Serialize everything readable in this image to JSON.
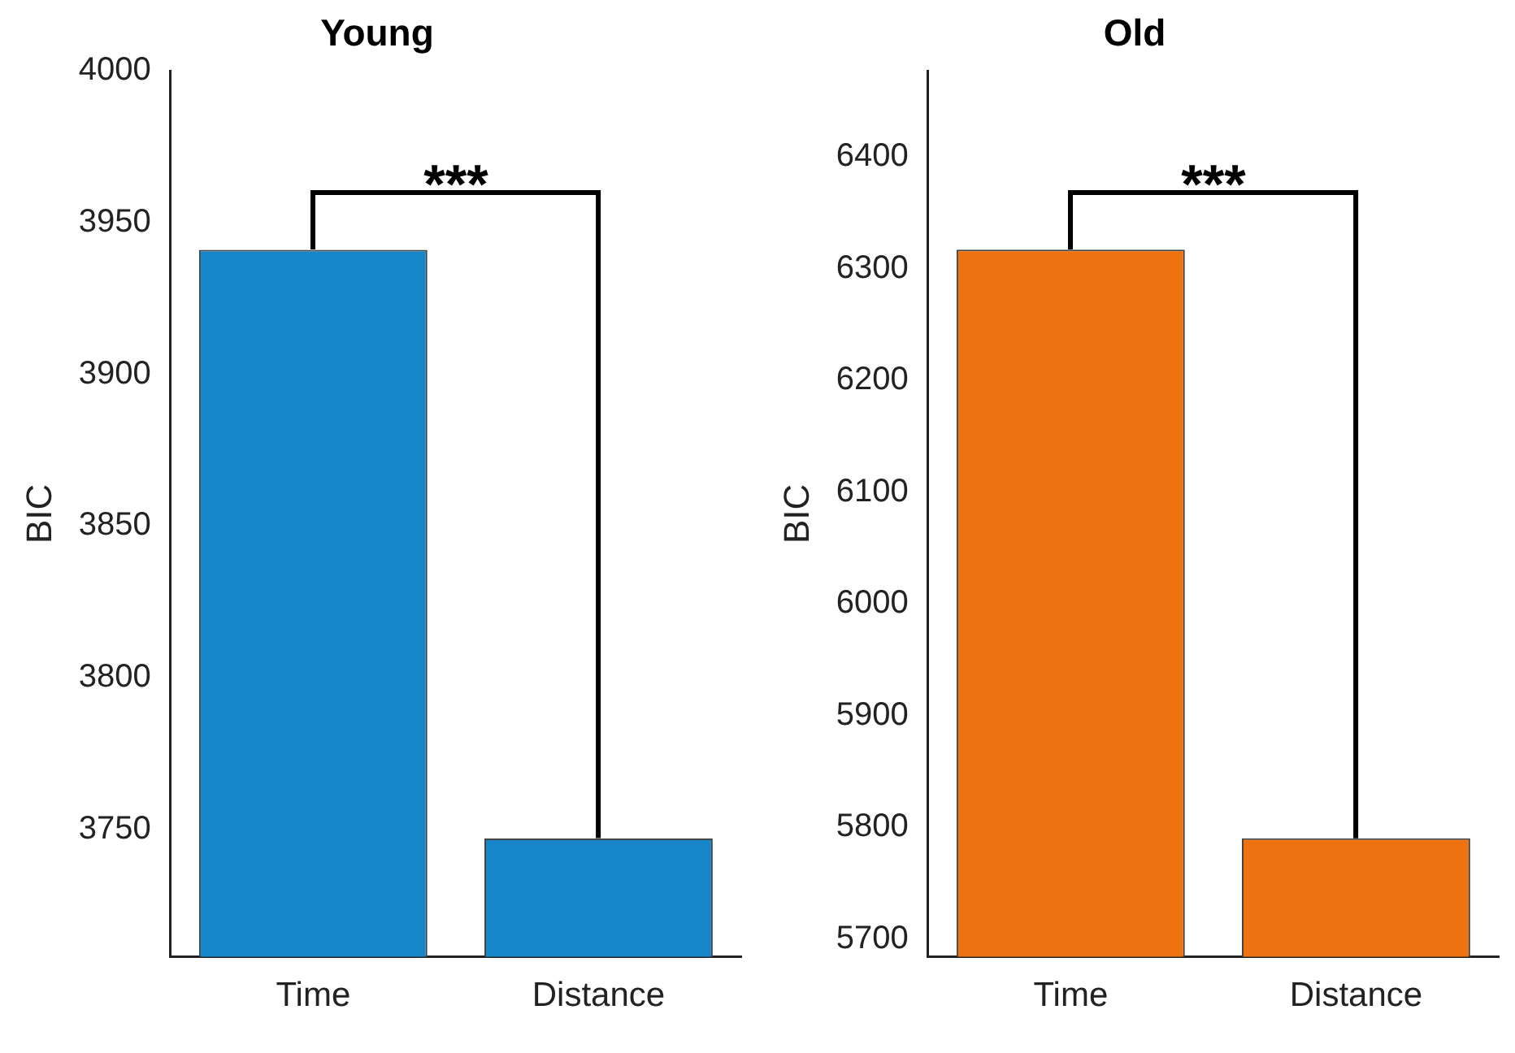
{
  "chart_data": [
    {
      "type": "bar",
      "title": "Young",
      "ylabel": "BIC",
      "categories": [
        "Time",
        "Distance"
      ],
      "values": [
        3941,
        3747
      ],
      "color": "#1786c8",
      "ylim": [
        3708,
        4000
      ],
      "yticks": [
        3750,
        3800,
        3850,
        3900,
        3950,
        4000
      ],
      "grid": false,
      "legend": false,
      "annotations": [
        "***"
      ]
    },
    {
      "type": "bar",
      "title": "Old",
      "ylabel": "BIC",
      "categories": [
        "Time",
        "Distance"
      ],
      "values": [
        6317,
        5790
      ],
      "color": "#ee720f",
      "ylim": [
        5684,
        6477
      ],
      "yticks": [
        5700,
        5800,
        5900,
        6000,
        6100,
        6200,
        6300,
        6400
      ],
      "grid": false,
      "legend": false,
      "annotations": [
        "***"
      ]
    }
  ]
}
